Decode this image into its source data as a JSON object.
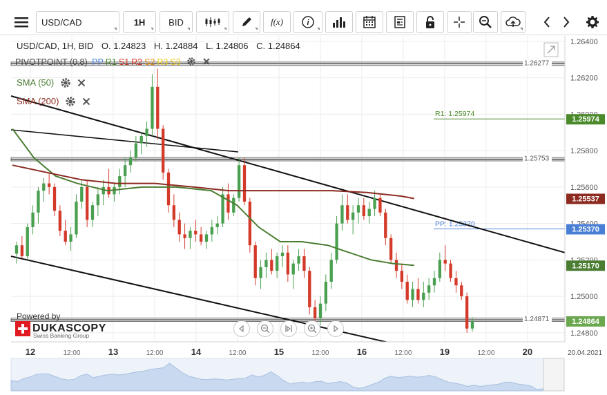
{
  "toolbar": {
    "symbol": "USD/CAD",
    "timeframe": "1H",
    "price_type": "BID",
    "function_label": "f(x)",
    "info_label": "i",
    "icons": [
      "menu-icon",
      "candles-icon",
      "pencil-icon",
      "function-icon",
      "info-icon",
      "bar-chart-icon",
      "calendar-icon",
      "news-icon",
      "lock-icon",
      "crosshair-icon",
      "zoom-icon",
      "cloud-upload-icon",
      "chevron-left-icon",
      "chevron-right-icon",
      "gear-icon"
    ]
  },
  "header": {
    "pair": "USD/CAD, 1H, BID",
    "open": "O. 1.24823",
    "high": "H. 1.24884",
    "low": "L. 1.24806",
    "close": "C. 1.24864"
  },
  "indicators": {
    "pivot": {
      "name": "PIVOTPOINT (0,8)",
      "levels": [
        {
          "label": "PP",
          "color": "#4a7fd6"
        },
        {
          "label": "R1",
          "color": "#4a8a2a"
        },
        {
          "label": "S1",
          "color": "#d43a2a"
        },
        {
          "label": "R2",
          "color": "#d43a2a"
        },
        {
          "label": "S2",
          "color": "#e8901e"
        },
        {
          "label": "R3",
          "color": "#e8c81e"
        },
        {
          "label": "S3",
          "color": "#e8c81e"
        }
      ]
    },
    "sma50": {
      "label": "SMA (50)",
      "color": "#4a7d32"
    },
    "sma200": {
      "label": "SMA (200)",
      "color": "#8c2a20"
    }
  },
  "branding": {
    "powered_by": "Powered by",
    "name": "DUKASCOPY",
    "tagline": "Swiss Banking Group"
  },
  "chart_data": {
    "type": "candlestick",
    "symbol": "USD/CAD",
    "timeframe": "1H",
    "ylim": [
      1.2475,
      1.2643
    ],
    "y_ticks": [
      "1.26400",
      "1.26200",
      "1.26000",
      "1.25800",
      "1.25600",
      "1.25400",
      "1.25200",
      "1.25000",
      "1.24800"
    ],
    "x_ticks": [
      {
        "t": 0.0,
        "label": "12",
        "bold": true
      },
      {
        "t": 0.085,
        "label": "12:00",
        "bold": false
      },
      {
        "t": 0.17,
        "label": "13",
        "bold": true
      },
      {
        "t": 0.255,
        "label": "12:00",
        "bold": false
      },
      {
        "t": 0.34,
        "label": "14",
        "bold": true
      },
      {
        "t": 0.425,
        "label": "12:00",
        "bold": false
      },
      {
        "t": 0.51,
        "label": "15",
        "bold": true
      },
      {
        "t": 0.595,
        "label": "12:00",
        "bold": false
      },
      {
        "t": 0.68,
        "label": "16",
        "bold": true
      },
      {
        "t": 0.765,
        "label": "12:00",
        "bold": false
      },
      {
        "t": 0.85,
        "label": "19",
        "bold": true
      },
      {
        "t": 0.935,
        "label": "12:00",
        "bold": false
      },
      {
        "t": 1.02,
        "label": "20",
        "bold": true
      }
    ],
    "date_label": "20.04.2021",
    "ohlc": [
      [
        1.25234,
        1.253,
        1.2518,
        1.2528
      ],
      [
        1.2528,
        1.2533,
        1.2521,
        1.2522
      ],
      [
        1.2522,
        1.254,
        1.252,
        1.2538
      ],
      [
        1.2538,
        1.255,
        1.2534,
        1.2546
      ],
      [
        1.2546,
        1.256,
        1.254,
        1.2558
      ],
      [
        1.2558,
        1.2565,
        1.2552,
        1.2562
      ],
      [
        1.2562,
        1.2568,
        1.2556,
        1.256
      ],
      [
        1.256,
        1.2562,
        1.2544,
        1.2547
      ],
      [
        1.2547,
        1.255,
        1.2533,
        1.2536
      ],
      [
        1.2536,
        1.2542,
        1.2528,
        1.253
      ],
      [
        1.253,
        1.2538,
        1.2525,
        1.2534
      ],
      [
        1.2534,
        1.2556,
        1.2532,
        1.2552
      ],
      [
        1.2552,
        1.2564,
        1.2548,
        1.256
      ],
      [
        1.256,
        1.2564,
        1.2538,
        1.2542
      ],
      [
        1.2542,
        1.2552,
        1.2538,
        1.255
      ],
      [
        1.255,
        1.256,
        1.2544,
        1.2556
      ],
      [
        1.2556,
        1.2564,
        1.255,
        1.256
      ],
      [
        1.256,
        1.257,
        1.2554,
        1.2556
      ],
      [
        1.2556,
        1.2562,
        1.2552,
        1.256
      ],
      [
        1.256,
        1.257,
        1.2556,
        1.2566
      ],
      [
        1.2566,
        1.2576,
        1.256,
        1.2572
      ],
      [
        1.2572,
        1.258,
        1.2568,
        1.2576
      ],
      [
        1.2576,
        1.2588,
        1.2574,
        1.2584
      ],
      [
        1.2584,
        1.259,
        1.2578,
        1.2588
      ],
      [
        1.2588,
        1.2596,
        1.2582,
        1.2592
      ],
      [
        1.2592,
        1.2622,
        1.2588,
        1.2615
      ],
      [
        1.2615,
        1.2625,
        1.2586,
        1.2592
      ],
      [
        1.2592,
        1.2594,
        1.2564,
        1.2568
      ],
      [
        1.2568,
        1.257,
        1.2546,
        1.255
      ],
      [
        1.255,
        1.2556,
        1.2538,
        1.2542
      ],
      [
        1.2542,
        1.2546,
        1.253,
        1.2534
      ],
      [
        1.2534,
        1.254,
        1.2526,
        1.2532
      ],
      [
        1.2532,
        1.2538,
        1.2526,
        1.2536
      ],
      [
        1.2536,
        1.2542,
        1.253,
        1.2534
      ],
      [
        1.2534,
        1.2538,
        1.2528,
        1.253
      ],
      [
        1.253,
        1.2536,
        1.2526,
        1.2534
      ],
      [
        1.2534,
        1.2542,
        1.253,
        1.2538
      ],
      [
        1.2538,
        1.2544,
        1.2534,
        1.254
      ],
      [
        1.254,
        1.256,
        1.2538,
        1.2556
      ],
      [
        1.2556,
        1.2562,
        1.2542,
        1.2546
      ],
      [
        1.2546,
        1.2556,
        1.2544,
        1.2554
      ],
      [
        1.2554,
        1.2576,
        1.2552,
        1.2572
      ],
      [
        1.2572,
        1.2576,
        1.255,
        1.2552
      ],
      [
        1.2552,
        1.2554,
        1.2524,
        1.2528
      ],
      [
        1.2528,
        1.253,
        1.2506,
        1.251
      ],
      [
        1.251,
        1.252,
        1.2504,
        1.2516
      ],
      [
        1.2516,
        1.2524,
        1.251,
        1.252
      ],
      [
        1.252,
        1.2526,
        1.2512,
        1.2514
      ],
      [
        1.2514,
        1.2524,
        1.251,
        1.2522
      ],
      [
        1.2522,
        1.2528,
        1.2516,
        1.2524
      ],
      [
        1.2524,
        1.2528,
        1.2508,
        1.2512
      ],
      [
        1.2512,
        1.252,
        1.2504,
        1.2518
      ],
      [
        1.2518,
        1.2526,
        1.2514,
        1.2522
      ],
      [
        1.2522,
        1.2526,
        1.251,
        1.2514
      ],
      [
        1.2514,
        1.2516,
        1.249,
        1.2494
      ],
      [
        1.2494,
        1.2498,
        1.2482,
        1.2488
      ],
      [
        1.2488,
        1.25,
        1.2484,
        1.2496
      ],
      [
        1.2496,
        1.2512,
        1.2492,
        1.2508
      ],
      [
        1.2508,
        1.2524,
        1.2504,
        1.252
      ],
      [
        1.252,
        1.2544,
        1.2518,
        1.254
      ],
      [
        1.254,
        1.2556,
        1.2536,
        1.255
      ],
      [
        1.255,
        1.2556,
        1.254,
        1.2542
      ],
      [
        1.2542,
        1.255,
        1.2534,
        1.2546
      ],
      [
        1.2546,
        1.2554,
        1.254,
        1.255
      ],
      [
        1.255,
        1.2554,
        1.2542,
        1.2544
      ],
      [
        1.2544,
        1.2552,
        1.254,
        1.2548
      ],
      [
        1.2548,
        1.2558,
        1.2544,
        1.2554
      ],
      [
        1.2554,
        1.2556,
        1.2544,
        1.2546
      ],
      [
        1.2546,
        1.2548,
        1.2528,
        1.2532
      ],
      [
        1.2532,
        1.2534,
        1.2518,
        1.252
      ],
      [
        1.252,
        1.2524,
        1.251,
        1.2514
      ],
      [
        1.2514,
        1.2518,
        1.2504,
        1.2508
      ],
      [
        1.2508,
        1.2512,
        1.2496,
        1.2498
      ],
      [
        1.2498,
        1.2508,
        1.2494,
        1.2504
      ],
      [
        1.2504,
        1.251,
        1.2496,
        1.2498
      ],
      [
        1.2498,
        1.2508,
        1.2494,
        1.2502
      ],
      [
        1.2502,
        1.251,
        1.2498,
        1.2506
      ],
      [
        1.2506,
        1.2514,
        1.2502,
        1.251
      ],
      [
        1.251,
        1.2524,
        1.2508,
        1.252
      ],
      [
        1.252,
        1.2528,
        1.2514,
        1.2518
      ],
      [
        1.2518,
        1.252,
        1.2508,
        1.251
      ],
      [
        1.251,
        1.2514,
        1.2502,
        1.2506
      ],
      [
        1.2506,
        1.2508,
        1.2498,
        1.25
      ],
      [
        1.25,
        1.2502,
        1.248,
        1.24823
      ],
      [
        1.24823,
        1.24884,
        1.24806,
        1.24864
      ]
    ],
    "sma50": [
      [
        0.0,
        1.2592
      ],
      [
        0.05,
        1.2576
      ],
      [
        0.1,
        1.2566
      ],
      [
        0.15,
        1.2562
      ],
      [
        0.22,
        1.2558
      ],
      [
        0.3,
        1.256
      ],
      [
        0.38,
        1.256
      ],
      [
        0.46,
        1.2558
      ],
      [
        0.52,
        1.255
      ],
      [
        0.57,
        1.2538
      ],
      [
        0.62,
        1.253
      ],
      [
        0.67,
        1.253
      ],
      [
        0.73,
        1.2528
      ],
      [
        0.78,
        1.2524
      ],
      [
        0.83,
        1.252
      ],
      [
        0.88,
        1.2518
      ],
      [
        0.93,
        1.2517
      ]
    ],
    "sma200": [
      [
        0.0,
        1.2572
      ],
      [
        0.08,
        1.2568
      ],
      [
        0.16,
        1.2564
      ],
      [
        0.24,
        1.2562
      ],
      [
        0.33,
        1.2562
      ],
      [
        0.42,
        1.256
      ],
      [
        0.5,
        1.2558
      ],
      [
        0.58,
        1.2558
      ],
      [
        0.66,
        1.2558
      ],
      [
        0.74,
        1.2558
      ],
      [
        0.82,
        1.2557
      ],
      [
        0.9,
        1.2555
      ],
      [
        0.93,
        1.25537
      ]
    ],
    "channel_upper": [
      [
        0.0,
        1.261
      ],
      [
        1.0,
        1.2524
      ]
    ],
    "channel_lower": [
      [
        0.0,
        1.2522
      ],
      [
        0.82,
        1.2465
      ]
    ],
    "horizontal_lines": [
      {
        "label": "1.26277",
        "value": 1.26277
      },
      {
        "label": "1.25753",
        "value": 1.25753
      },
      {
        "label": "1.24871",
        "value": 1.24871
      }
    ],
    "pivot_levels": [
      {
        "label": "R1: 1.25974",
        "value": 1.25974,
        "color": "#4a8a2a",
        "badge": "1.25974"
      },
      {
        "label": "PP: 1.25370",
        "value": 1.2537,
        "color": "#4a7fd6",
        "badge": "1.25370"
      }
    ],
    "price_badges": [
      {
        "text": "1.25537",
        "value": 1.25537,
        "color": "#8c2a20"
      },
      {
        "text": "1.25170",
        "value": 1.2517,
        "color": "#4a7d32"
      },
      {
        "text": "1.24864",
        "value": 1.24864,
        "color": "#6aa84f"
      }
    ],
    "up_color": "#4aa050",
    "down_color": "#d43a2a"
  }
}
